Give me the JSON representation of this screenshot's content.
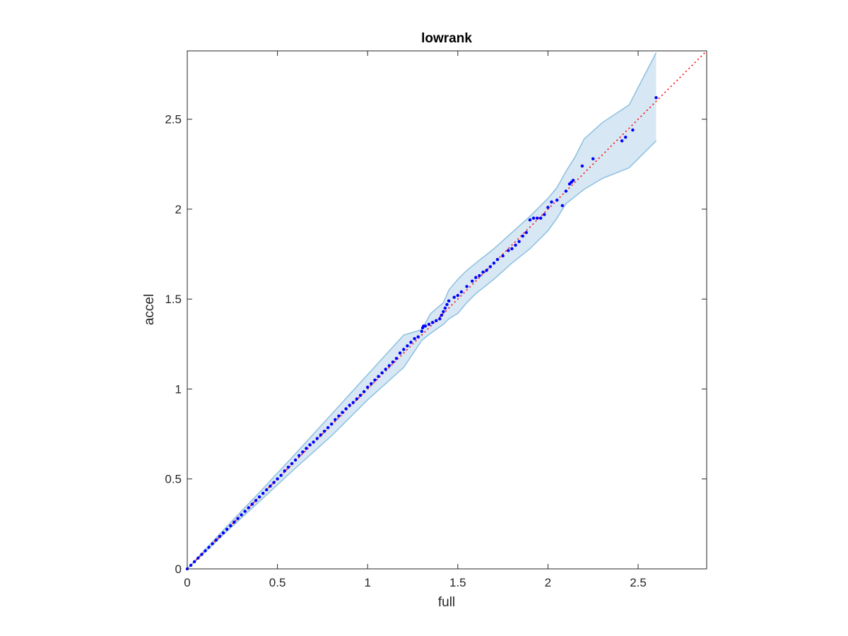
{
  "chart_data": {
    "type": "scatter",
    "title": "lowrank",
    "xlabel": "full",
    "ylabel": "accel",
    "xlim": [
      0,
      2.88
    ],
    "ylim": [
      0,
      2.88
    ],
    "xticks": [
      0,
      0.5,
      1,
      1.5,
      2,
      2.5
    ],
    "yticks": [
      0,
      0.5,
      1,
      1.5,
      2,
      2.5
    ],
    "xtick_labels": [
      "0",
      "0.5",
      "1",
      "1.5",
      "2",
      "2.5"
    ],
    "ytick_labels": [
      "0",
      "0.5",
      "1",
      "1.5",
      "2",
      "2.5"
    ],
    "grid": false,
    "box": true,
    "colors": {
      "points": "#0000ff",
      "reference_line": "#ff0000",
      "band_fill": "#d7e7f3",
      "band_edge": "#8cc0e0",
      "axes": "#262626"
    },
    "reference_line": {
      "x": [
        0,
        2.88
      ],
      "y": [
        0,
        2.88
      ],
      "style": "dotted"
    },
    "band": {
      "x": [
        0,
        0.2,
        0.4,
        0.6,
        0.8,
        1.0,
        1.2,
        1.3,
        1.35,
        1.42,
        1.45,
        1.5,
        1.55,
        1.6,
        1.7,
        1.8,
        1.9,
        2.0,
        2.05,
        2.1,
        2.15,
        2.2,
        2.3,
        2.45,
        2.6
      ],
      "upper": [
        0.0,
        0.215,
        0.425,
        0.64,
        0.86,
        1.08,
        1.3,
        1.33,
        1.42,
        1.48,
        1.55,
        1.61,
        1.66,
        1.7,
        1.78,
        1.87,
        1.96,
        2.06,
        2.12,
        2.21,
        2.29,
        2.39,
        2.48,
        2.58,
        2.87
      ],
      "lower": [
        0.0,
        0.19,
        0.375,
        0.56,
        0.74,
        0.94,
        1.12,
        1.27,
        1.31,
        1.36,
        1.39,
        1.42,
        1.48,
        1.53,
        1.61,
        1.7,
        1.78,
        1.88,
        1.95,
        2.03,
        2.07,
        2.11,
        2.17,
        2.23,
        2.38
      ]
    },
    "points": {
      "x": [
        0,
        0.02,
        0.04,
        0.06,
        0.08,
        0.1,
        0.12,
        0.14,
        0.16,
        0.18,
        0.2,
        0.22,
        0.24,
        0.26,
        0.28,
        0.3,
        0.32,
        0.34,
        0.36,
        0.38,
        0.4,
        0.42,
        0.44,
        0.46,
        0.48,
        0.5,
        0.52,
        0.54,
        0.56,
        0.58,
        0.6,
        0.62,
        0.64,
        0.66,
        0.68,
        0.7,
        0.72,
        0.74,
        0.76,
        0.78,
        0.8,
        0.82,
        0.84,
        0.86,
        0.88,
        0.9,
        0.92,
        0.94,
        0.96,
        0.98,
        1.0,
        1.02,
        1.04,
        1.06,
        1.08,
        1.1,
        1.12,
        1.14,
        1.16,
        1.18,
        1.2,
        1.22,
        1.24,
        1.26,
        1.28,
        1.3,
        1.305,
        1.31,
        1.32,
        1.34,
        1.36,
        1.38,
        1.4,
        1.41,
        1.42,
        1.43,
        1.44,
        1.45,
        1.48,
        1.5,
        1.52,
        1.55,
        1.58,
        1.6,
        1.62,
        1.64,
        1.66,
        1.68,
        1.7,
        1.72,
        1.75,
        1.78,
        1.8,
        1.82,
        1.84,
        1.86,
        1.88,
        1.9,
        1.92,
        1.94,
        1.96,
        1.98,
        2.0,
        2.02,
        2.05,
        2.08,
        2.1,
        2.12,
        2.13,
        2.14,
        2.19,
        2.25,
        2.41,
        2.43,
        2.47,
        2.6
      ],
      "y": [
        0,
        0.02,
        0.04,
        0.06,
        0.08,
        0.1,
        0.12,
        0.14,
        0.16,
        0.18,
        0.2,
        0.22,
        0.24,
        0.26,
        0.28,
        0.3,
        0.32,
        0.34,
        0.36,
        0.38,
        0.4,
        0.42,
        0.44,
        0.46,
        0.48,
        0.5,
        0.52,
        0.545,
        0.565,
        0.585,
        0.605,
        0.63,
        0.65,
        0.67,
        0.69,
        0.705,
        0.725,
        0.745,
        0.765,
        0.785,
        0.805,
        0.83,
        0.85,
        0.87,
        0.89,
        0.91,
        0.925,
        0.945,
        0.965,
        0.985,
        1.01,
        1.03,
        1.05,
        1.07,
        1.09,
        1.11,
        1.13,
        1.15,
        1.17,
        1.2,
        1.22,
        1.24,
        1.26,
        1.28,
        1.29,
        1.32,
        1.34,
        1.35,
        1.35,
        1.36,
        1.37,
        1.38,
        1.39,
        1.41,
        1.43,
        1.45,
        1.47,
        1.49,
        1.51,
        1.52,
        1.54,
        1.57,
        1.6,
        1.62,
        1.63,
        1.65,
        1.66,
        1.68,
        1.7,
        1.72,
        1.74,
        1.77,
        1.78,
        1.8,
        1.82,
        1.85,
        1.87,
        1.94,
        1.95,
        1.95,
        1.95,
        1.97,
        2.01,
        2.04,
        2.05,
        2.02,
        2.1,
        2.14,
        2.15,
        2.16,
        2.24,
        2.28,
        2.38,
        2.4,
        2.44,
        2.62
      ]
    }
  }
}
